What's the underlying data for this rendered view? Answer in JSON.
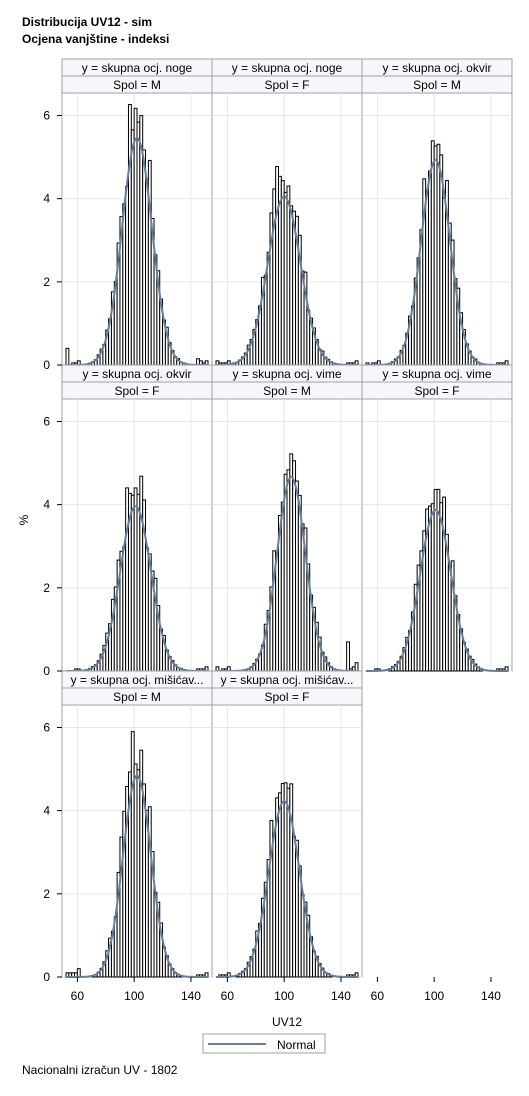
{
  "title_line1": "Distribucija UV12 - sim",
  "title_line2": "Ocjena vanjštine - indeksi",
  "footnote": "Nacionalni izračun UV - 1802",
  "colors": {
    "bars": "#000000",
    "curve": "#667d99",
    "grid": "#e6e6e6",
    "frame": "#a0a0a0",
    "header_bg": "#f5f7fb"
  },
  "chart_data": {
    "type": "histogram-panel",
    "xlabel": "UV12",
    "ylabel": "%",
    "xlim": [
      52,
      152
    ],
    "ylim": [
      0,
      6.3
    ],
    "x_ticks": [
      60,
      100,
      140
    ],
    "y_ticks": [
      0,
      2,
      4,
      6
    ],
    "legend": {
      "label": "Normal",
      "placement": "bottom-center"
    },
    "panels": [
      {
        "row_label": "y = skupna ocj. noge",
        "col_label": "Spol = M",
        "mean": 102,
        "sd": 10.5,
        "peak": 6.2,
        "low_tail": [
          0.4,
          0,
          0.05,
          0.05,
          0.1
        ],
        "high_tail": [
          0.1,
          0.05,
          0.1,
          0.15
        ]
      },
      {
        "row_label": "y = skupna ocj. noge",
        "col_label": "Spol = F",
        "mean": 100,
        "sd": 11.5,
        "peak": 4.6,
        "low_tail": [
          0.1,
          0.05,
          0.05,
          0.05,
          0.1
        ],
        "high_tail": [
          0.1,
          0.05,
          0.05,
          0.05
        ]
      },
      {
        "row_label": "y = skupna ocj. okvir",
        "col_label": "Spol = M",
        "mean": 101,
        "sd": 10.2,
        "peak": 5.6,
        "low_tail": [
          0.05,
          0,
          0.05,
          0.05,
          0.1
        ],
        "high_tail": [
          0.1,
          0.05,
          0.05,
          0.05
        ]
      },
      {
        "row_label": "y = skupna ocj. okvir",
        "col_label": "Spol = F",
        "mean": 101,
        "sd": 10.8,
        "peak": 4.5,
        "low_tail": [
          0,
          0,
          0,
          0.05,
          0.05
        ],
        "high_tail": [
          0.1,
          0.05,
          0.05,
          0.05
        ]
      },
      {
        "row_label": "y = skupna ocj. vime",
        "col_label": "Spol = M",
        "mean": 105,
        "sd": 10.0,
        "peak": 5.3,
        "low_tail": [
          0.1,
          0,
          0.05,
          0.05,
          0.1
        ],
        "high_tail": [
          0.2,
          0.1,
          0.05,
          0.7
        ]
      },
      {
        "row_label": "y = skupna ocj. vime",
        "col_label": "Spol = F",
        "mean": 101,
        "sd": 10.8,
        "peak": 4.4,
        "low_tail": [
          0,
          0,
          0,
          0.05,
          0.05
        ],
        "high_tail": [
          0.1,
          0.05,
          0.05,
          0.05
        ]
      },
      {
        "row_label": "y = skupna ocj. mišićav...",
        "col_label": "Spol = M",
        "mean": 102,
        "sd": 9.8,
        "peak": 5.5,
        "low_tail": [
          0.1,
          0.1,
          0.1,
          0.1,
          0.2
        ],
        "high_tail": [
          0.1,
          0.05,
          0.05,
          0.05
        ]
      },
      {
        "row_label": "y = skupna ocj. mišićav...",
        "col_label": "Spol = F",
        "mean": 100,
        "sd": 10.8,
        "peak": 4.8,
        "low_tail": [
          0,
          0.05,
          0.05,
          0.05,
          0.1
        ],
        "high_tail": [
          0.1,
          0.05,
          0.05,
          0.05
        ]
      }
    ]
  }
}
